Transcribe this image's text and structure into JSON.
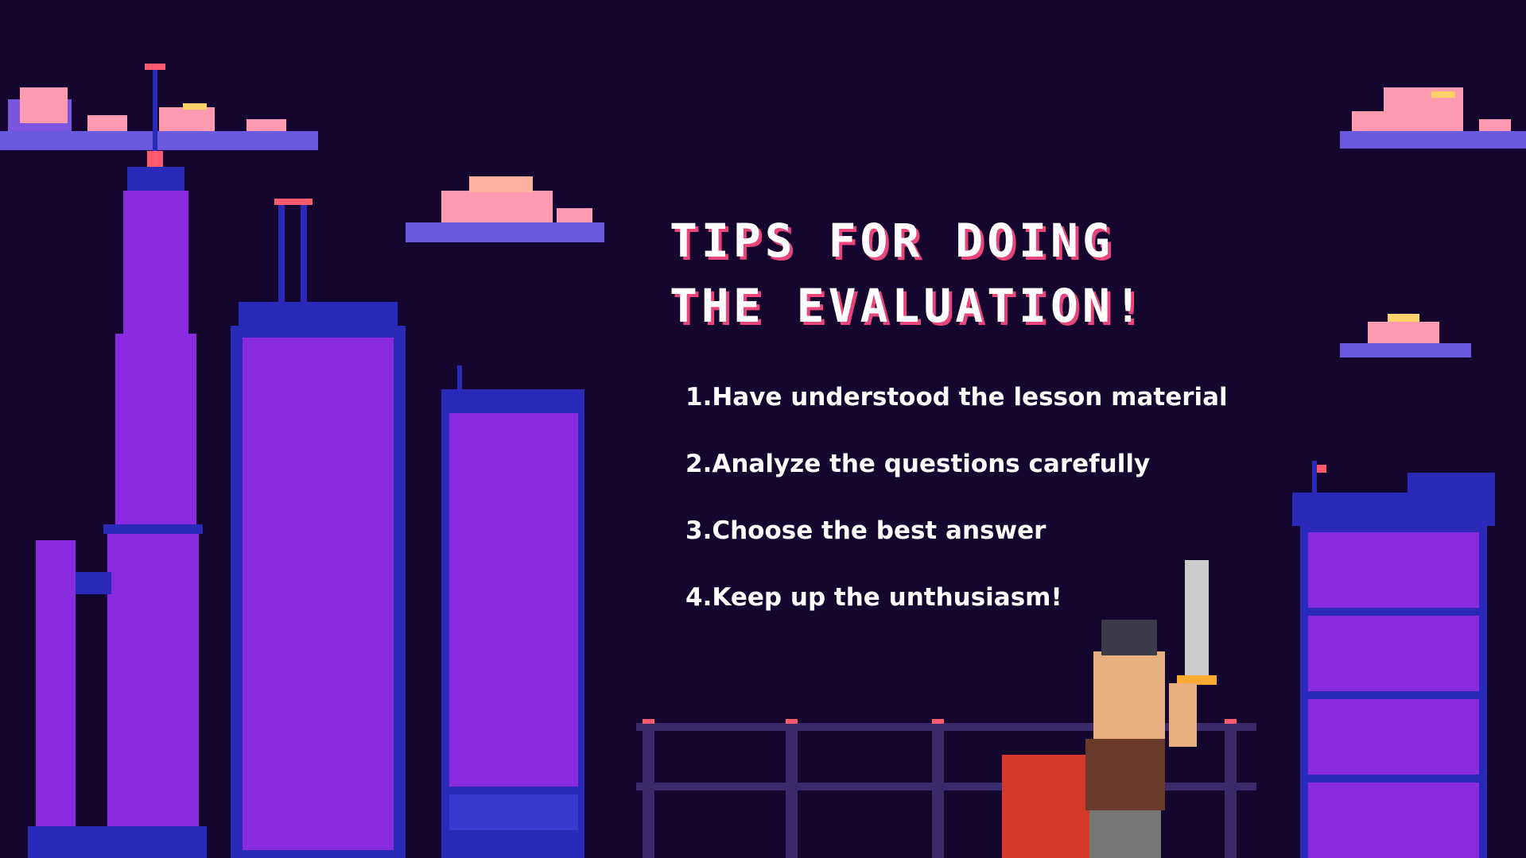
{
  "slide": {
    "title_line1": "Tips for doing",
    "title_line2": "the evaluation!",
    "tips": [
      {
        "number": "1.",
        "text": "Have understood the lesson material"
      },
      {
        "number": "2.",
        "text": "Analyze the questions carefully"
      },
      {
        "number": "3.",
        "text": "Choose the best answer"
      },
      {
        "number": "4.",
        "text": "Keep up the unthusiasm!"
      }
    ]
  },
  "colors": {
    "background": "#14062e",
    "title_shadow": "#e8457a",
    "building_purple": "#8a2be2",
    "building_blue": "#2a2ab8",
    "window_cyan": "#3de0c8",
    "window_red": "#ff5a6e",
    "cloud_pink": "#ff9ab0",
    "cloud_blue": "#6a5ae0"
  }
}
